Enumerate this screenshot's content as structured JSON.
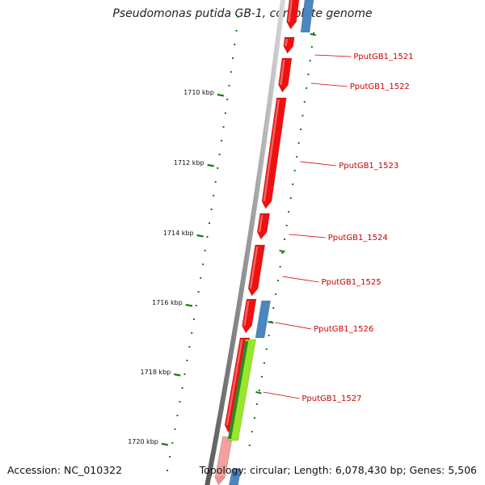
{
  "title": "Pseudomonas putida GB-1, complete genome",
  "footer": {
    "accession": "Accession: NC_010322",
    "summary": "Topology: circular; Length: 6,078,430 bp; Genes: 5,506"
  },
  "colors": {
    "forward_cds": "#ee1111",
    "reverse_cds": "#4a86c0",
    "other_feature": "#99e62a",
    "backbone": "#888888",
    "tick": "#1a7a1a",
    "gene_label": "#cc0000"
  },
  "ruler": {
    "labels": [
      "1710 kbp",
      "1712 kbp",
      "1714 kbp",
      "1716 kbp",
      "1718 kbp",
      "1720 kbp"
    ]
  },
  "genes": [
    {
      "label": "PputGB1_1521"
    },
    {
      "label": "PputGB1_1522"
    },
    {
      "label": "PputGB1_1523"
    },
    {
      "label": "PputGB1_1524"
    },
    {
      "label": "PputGB1_1525"
    },
    {
      "label": "PputGB1_1526"
    },
    {
      "label": "PputGB1_1527"
    }
  ]
}
